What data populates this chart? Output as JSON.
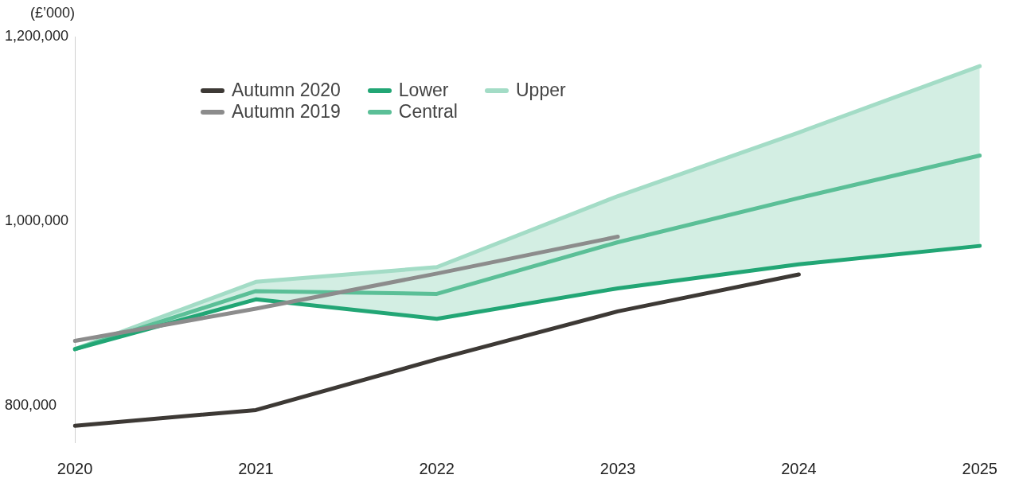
{
  "chart_data": {
    "type": "line",
    "ylabel": "(£’000)",
    "categories": [
      "2020",
      "2021",
      "2022",
      "2023",
      "2024",
      "2025"
    ],
    "ylim": [
      760000,
      1200000
    ],
    "yticks": [
      {
        "value": 800000,
        "label": "800,000"
      },
      {
        "value": 1000000,
        "label": "1,000,000"
      },
      {
        "value": 1200000,
        "label": "1,200,000"
      }
    ],
    "grid": false,
    "legend": "top left",
    "marker": "none",
    "line_style": "solid",
    "series": [
      {
        "name": "Autumn 2020",
        "color": "#3d3935",
        "values": [
          778000,
          795000,
          850000,
          902000,
          942000,
          null
        ]
      },
      {
        "name": "Autumn 2019",
        "color": "#8c8c8c",
        "values": [
          870000,
          905000,
          943000,
          983000,
          null,
          null
        ]
      },
      {
        "name": "Lower",
        "color": "#22a675",
        "values": [
          861000,
          915000,
          894000,
          927000,
          953000,
          973000
        ]
      },
      {
        "name": "Central",
        "color": "#5bbf97",
        "values": [
          861000,
          924000,
          921000,
          977000,
          1025000,
          1071000
        ],
        "lower": [
          861000,
          915000,
          894000,
          927000,
          953000,
          973000
        ],
        "upper": [
          861000,
          934000,
          950000,
          1027000,
          1096000,
          1168000
        ]
      },
      {
        "name": "Upper",
        "color": "#a3dcc6",
        "values": [
          861000,
          934000,
          950000,
          1027000,
          1096000,
          1168000
        ]
      }
    ]
  }
}
